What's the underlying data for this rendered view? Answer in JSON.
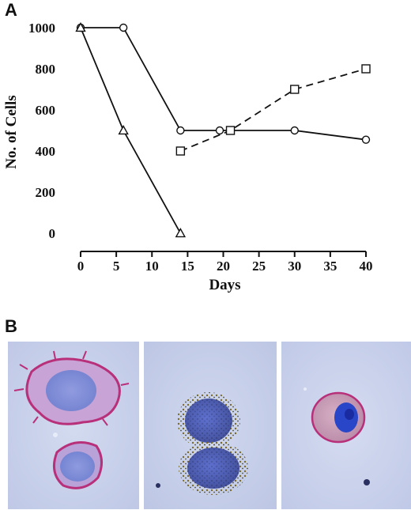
{
  "panels": {
    "a_label": "A",
    "b_label": "B"
  },
  "chart_data": {
    "type": "line",
    "xlabel": "Days",
    "ylabel": "No. of Cells",
    "xlim": [
      0,
      40
    ],
    "ylim": [
      0,
      1000
    ],
    "xticks": [
      0,
      5,
      10,
      15,
      20,
      25,
      30,
      35,
      40
    ],
    "yticks": [
      0,
      200,
      400,
      600,
      800,
      1000
    ],
    "grid": false,
    "series": [
      {
        "marker": "circle",
        "line": "solid",
        "x": [
          0,
          6,
          14,
          19.5,
          30,
          40
        ],
        "y": [
          1000,
          1000,
          500,
          500,
          500,
          455
        ]
      },
      {
        "marker": "triangle",
        "line": "solid",
        "x": [
          0,
          6,
          14
        ],
        "y": [
          1000,
          500,
          0
        ]
      },
      {
        "marker": "square",
        "line": "dashed",
        "x": [
          14,
          21,
          30,
          40
        ],
        "y": [
          400,
          500,
          700,
          800
        ]
      }
    ]
  },
  "micrographs": {
    "background": "#c9d1ea",
    "cell_membrane_color": "#b8307a",
    "nucleus_color": "#3a4fb8",
    "granule_color": "#7a6a2a"
  }
}
